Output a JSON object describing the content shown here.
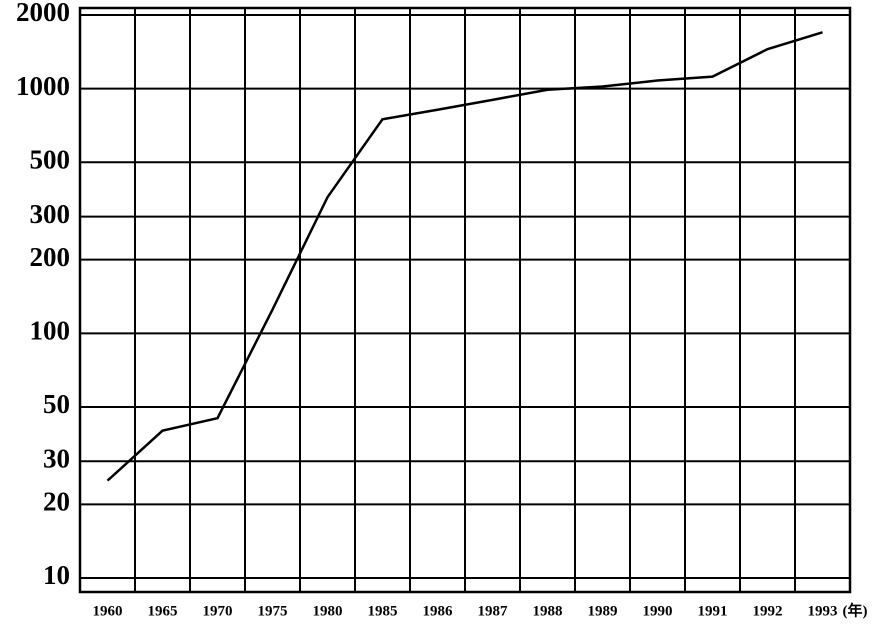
{
  "chart_data": {
    "type": "line",
    "categories": [
      "1960",
      "1965",
      "1970",
      "1975",
      "1980",
      "1985",
      "1986",
      "1987",
      "1988",
      "1989",
      "1990",
      "1991",
      "1992",
      "1993"
    ],
    "xlabel": "(年)",
    "values": [
      25,
      40,
      45,
      125,
      360,
      750,
      820,
      900,
      990,
      1020,
      1080,
      1120,
      1450,
      1700
    ],
    "color": "#000000",
    "ylim": [
      10,
      2000
    ],
    "yticks": [
      10,
      20,
      30,
      50,
      100,
      200,
      300,
      500,
      1000,
      2000
    ],
    "log_scale": true,
    "grid": true
  }
}
